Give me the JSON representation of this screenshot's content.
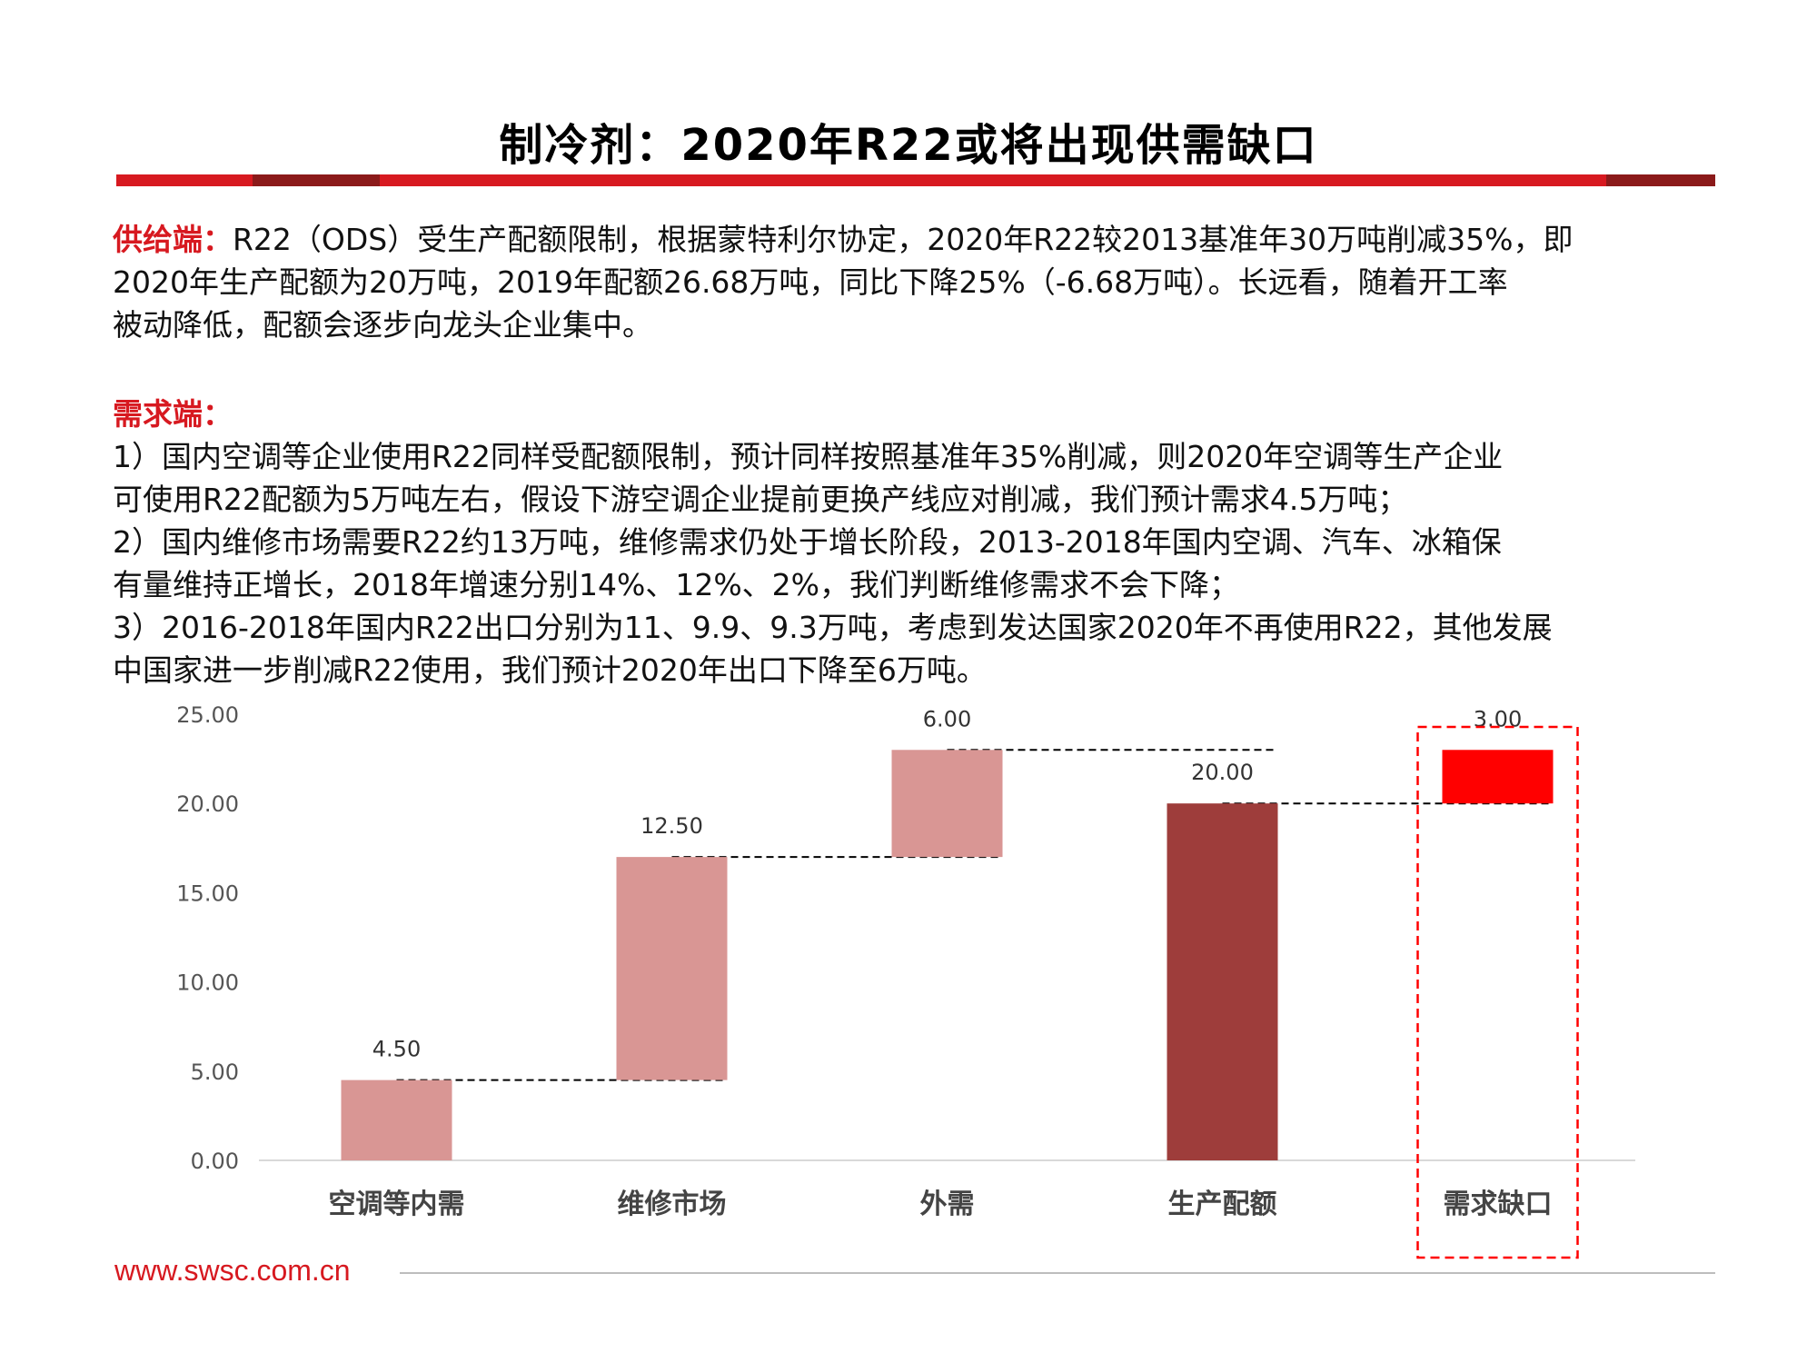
{
  "title": "制冷剂：2020年R22或将出现供需缺口",
  "supply": {
    "lead": "供给端：",
    "lines": [
      "R22（ODS）受生产配额限制，根据蒙特利尔协定，2020年R22较2013基准年30万吨削减35%，即",
      "2020年生产配额为20万吨，2019年配额26.68万吨，同比下降25%（-6.68万吨）。长远看，随着开工率",
      "被动降低，配额会逐步向龙头企业集中。"
    ]
  },
  "demand": {
    "lead": "需求端：",
    "lines": [
      "1）国内空调等企业使用R22同样受配额限制，预计同样按照基准年35%削减，则2020年空调等生产企业",
      "可使用R22配额为5万吨左右，假设下游空调企业提前更换产线应对削减，我们预计需求4.5万吨；",
      "2）国内维修市场需要R22约13万吨，维修需求仍处于增长阶段，2013-2018年国内空调、汽车、冰箱保",
      "有量维持正增长，2018年增速分别14%、12%、2%，我们判断维修需求不会下降；",
      "3）2016-2018年国内R22出口分别为11、9.9、9.3万吨，考虑到发达国家2020年不再使用R22，其他发展",
      "中国家进一步削减R22使用，我们预计2020年出口下降至6万吨。"
    ]
  },
  "footer": {
    "url": "www.swsc.com.cn"
  },
  "colors": {
    "accent": "#d71920",
    "dark_accent": "#8b1a1a",
    "demand_bar": "#d99694",
    "supply_bar": "#9e3d3b",
    "gap_bar": "#ff0000"
  },
  "chart_data": {
    "type": "waterfall",
    "categories": [
      "空调等内需",
      "维修市场",
      "外需",
      "生产配额",
      "需求缺口"
    ],
    "values": [
      4.5,
      12.5,
      6.0,
      20.0,
      3.0
    ],
    "bars": [
      {
        "label": "空调等内需",
        "start": 0,
        "end": 4.5,
        "value_label": "4.50",
        "kind": "demand"
      },
      {
        "label": "维修市场",
        "start": 4.5,
        "end": 17.0,
        "value_label": "12.50",
        "kind": "demand"
      },
      {
        "label": "外需",
        "start": 17.0,
        "end": 23.0,
        "value_label": "6.00",
        "kind": "demand"
      },
      {
        "label": "生产配额",
        "start": 0,
        "end": 20.0,
        "value_label": "20.00",
        "kind": "supply"
      },
      {
        "label": "需求缺口",
        "start": 20.0,
        "end": 23.0,
        "value_label": "3.00",
        "kind": "gap"
      }
    ],
    "y_ticks": [
      "0.00",
      "5.00",
      "10.00",
      "15.00",
      "20.00",
      "25.00"
    ],
    "ylim": [
      0,
      25
    ],
    "highlight": "需求缺口",
    "title": "",
    "xlabel": "",
    "ylabel": ""
  }
}
